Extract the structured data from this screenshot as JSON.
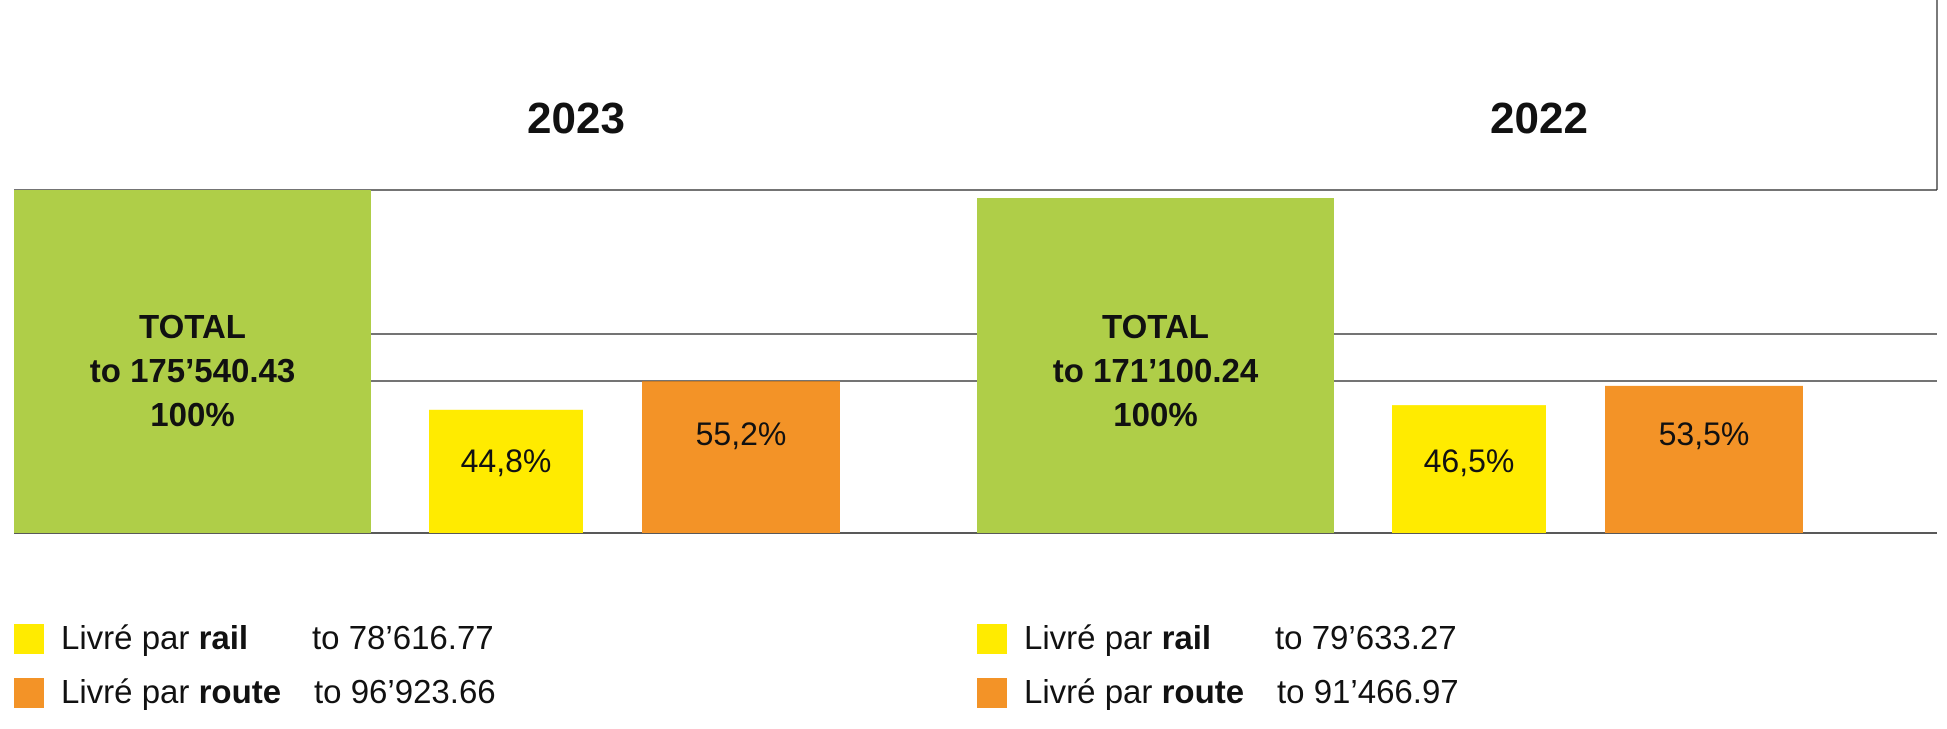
{
  "chart_data": {
    "type": "bar",
    "colors": {
      "total": "#afce48",
      "rail": "#ffeb00",
      "route": "#f39327"
    },
    "panels": [
      {
        "year": "2023",
        "total_lines": [
          "TOTAL",
          "to 175’540.43",
          "100%"
        ],
        "total_value": 175540.43,
        "bars": [
          {
            "key": "rail",
            "share": 44.8,
            "label": "44,8%",
            "value": 78616.77
          },
          {
            "key": "route",
            "share": 55.2,
            "label": "55,2%",
            "value": 96923.66
          }
        ],
        "legend": [
          {
            "prefix": "Livré par ",
            "bold": "rail",
            "value": "to 78’616.77",
            "color": "#ffeb00"
          },
          {
            "prefix": "Livré par ",
            "bold": "route",
            "value": "to 96’923.66",
            "color": "#f39327"
          }
        ]
      },
      {
        "year": "2022",
        "total_lines": [
          "TOTAL",
          "to 171’100.24",
          "100%"
        ],
        "total_value": 171100.24,
        "bars": [
          {
            "key": "rail",
            "share": 46.5,
            "label": "46,5%",
            "value": 79633.27
          },
          {
            "key": "route",
            "share": 53.5,
            "label": "53,5%",
            "value": 91466.97
          }
        ],
        "legend": [
          {
            "prefix": "Livré par ",
            "bold": "rail",
            "value": "to 79’633.27",
            "color": "#ffeb00"
          },
          {
            "prefix": "Livré par ",
            "bold": "route",
            "value": "to 91’466.97",
            "color": "#f39327"
          }
        ]
      }
    ]
  }
}
